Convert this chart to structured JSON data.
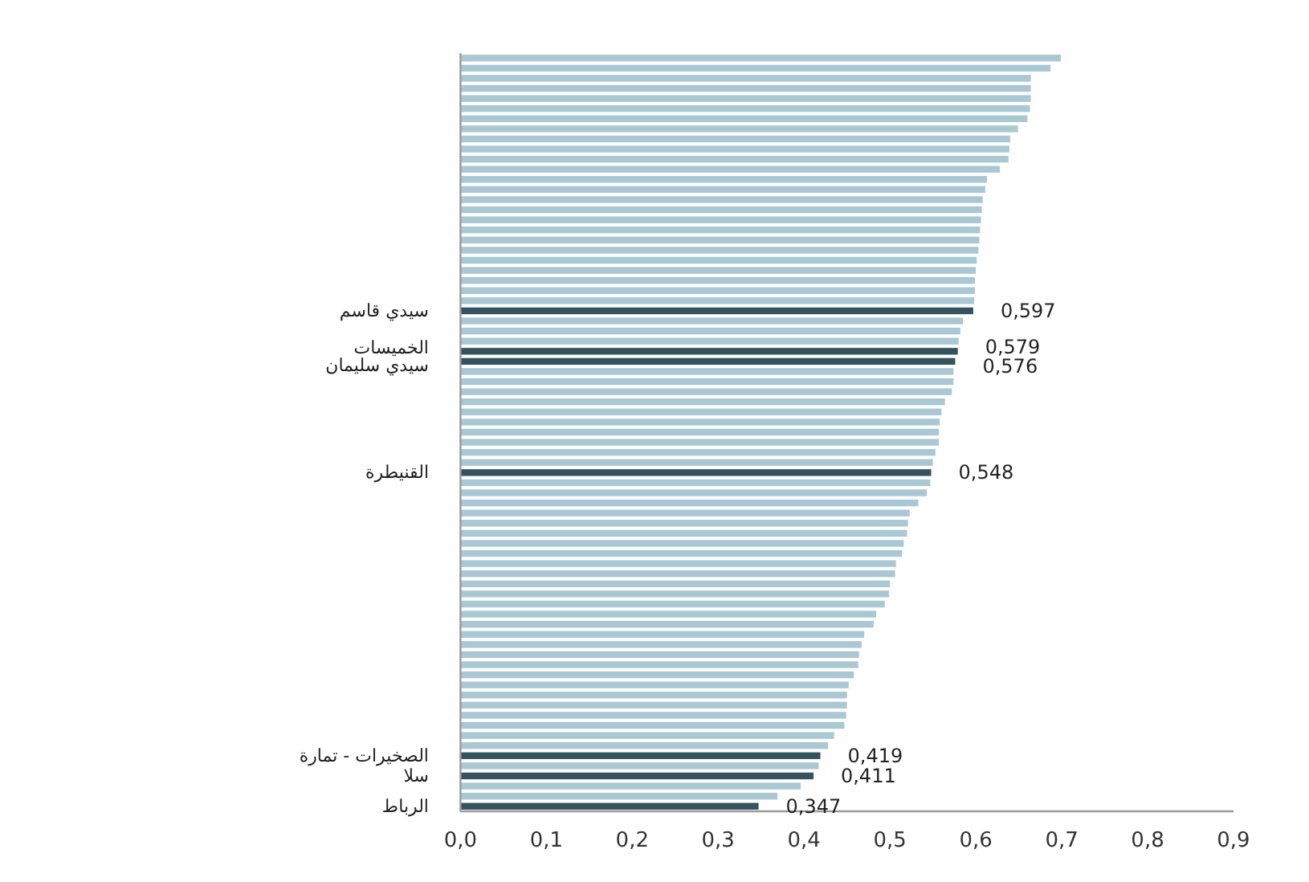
{
  "chart_data": {
    "type": "bar",
    "orientation": "horizontal",
    "categories": [
      null,
      null,
      null,
      null,
      null,
      null,
      null,
      null,
      null,
      null,
      null,
      null,
      null,
      null,
      null,
      null,
      null,
      null,
      null,
      null,
      null,
      null,
      null,
      null,
      null,
      "سيدي قاسم",
      null,
      null,
      null,
      "الخميسات",
      "سيدي سليمان",
      null,
      null,
      null,
      null,
      null,
      null,
      null,
      null,
      null,
      null,
      "القنيطرة",
      null,
      null,
      null,
      null,
      null,
      null,
      null,
      null,
      null,
      null,
      null,
      null,
      null,
      null,
      null,
      null,
      null,
      null,
      null,
      null,
      null,
      null,
      null,
      null,
      null,
      null,
      null,
      "الصخيرات - تمارة",
      null,
      "سلا",
      null,
      null,
      "الرباط"
    ],
    "values": [
      0.699,
      0.687,
      0.664,
      0.664,
      0.664,
      0.663,
      0.66,
      0.649,
      0.64,
      0.639,
      0.638,
      0.628,
      0.613,
      0.611,
      0.608,
      0.607,
      0.606,
      0.605,
      0.604,
      0.603,
      0.601,
      0.6,
      0.599,
      0.599,
      0.598,
      0.597,
      0.585,
      0.582,
      0.58,
      0.579,
      0.576,
      0.574,
      0.574,
      0.572,
      0.564,
      0.56,
      0.558,
      0.557,
      0.557,
      0.553,
      0.55,
      0.548,
      0.547,
      0.543,
      0.533,
      0.523,
      0.521,
      0.52,
      0.516,
      0.514,
      0.507,
      0.506,
      0.5,
      0.499,
      0.494,
      0.484,
      0.481,
      0.47,
      0.467,
      0.464,
      0.463,
      0.458,
      0.452,
      0.45,
      0.45,
      0.449,
      0.447,
      0.435,
      0.428,
      0.419,
      0.417,
      0.411,
      0.396,
      0.369,
      0.347
    ],
    "colors": [
      "#a9c8d4",
      "#a9c8d4",
      "#a9c8d4",
      "#a9c8d4",
      "#a9c8d4",
      "#a9c8d4",
      "#a9c8d4",
      "#a9c8d4",
      "#a9c8d4",
      "#a9c8d4",
      "#a9c8d4",
      "#a9c8d4",
      "#a9c8d4",
      "#a9c8d4",
      "#a9c8d4",
      "#a9c8d4",
      "#a9c8d4",
      "#a9c8d4",
      "#a9c8d4",
      "#a9c8d4",
      "#a9c8d4",
      "#a9c8d4",
      "#a9c8d4",
      "#a9c8d4",
      "#a9c8d4",
      "#34535e",
      "#a9c8d4",
      "#a9c8d4",
      "#a9c8d4",
      "#34535e",
      "#34535e",
      "#a9c8d4",
      "#a9c8d4",
      "#a9c8d4",
      "#a9c8d4",
      "#a9c8d4",
      "#a9c8d4",
      "#a9c8d4",
      "#a9c8d4",
      "#a9c8d4",
      "#a9c8d4",
      "#34535e",
      "#a9c8d4",
      "#a9c8d4",
      "#a9c8d4",
      "#a9c8d4",
      "#a9c8d4",
      "#a9c8d4",
      "#a9c8d4",
      "#a9c8d4",
      "#a9c8d4",
      "#a9c8d4",
      "#a9c8d4",
      "#a9c8d4",
      "#a9c8d4",
      "#a9c8d4",
      "#a9c8d4",
      "#a9c8d4",
      "#a9c8d4",
      "#a9c8d4",
      "#a9c8d4",
      "#a9c8d4",
      "#a9c8d4",
      "#a9c8d4",
      "#a9c8d4",
      "#a9c8d4",
      "#a9c8d4",
      "#a9c8d4",
      "#a9c8d4",
      "#34535e",
      "#a9c8d4",
      "#34535e",
      "#a9c8d4",
      "#a9c8d4",
      "#34535e"
    ],
    "value_labels": [
      null,
      null,
      null,
      null,
      null,
      null,
      null,
      null,
      null,
      null,
      null,
      null,
      null,
      null,
      null,
      null,
      null,
      null,
      null,
      null,
      null,
      null,
      null,
      null,
      null,
      "0,597",
      null,
      null,
      null,
      "0,579",
      "0,576",
      null,
      null,
      null,
      null,
      null,
      null,
      null,
      null,
      null,
      null,
      "0,548",
      null,
      null,
      null,
      null,
      null,
      null,
      null,
      null,
      null,
      null,
      null,
      null,
      null,
      null,
      null,
      null,
      null,
      null,
      null,
      null,
      null,
      null,
      null,
      null,
      null,
      null,
      null,
      "0,419",
      null,
      "0,411",
      null,
      null,
      "0,347"
    ],
    "xlim": [
      0,
      0.9
    ],
    "xticks": [
      {
        "value": 0,
        "label": "0,0"
      },
      {
        "value": 0.1,
        "label": "0,1"
      },
      {
        "value": 0.2,
        "label": "0,2"
      },
      {
        "value": 0.3,
        "label": "0,3"
      },
      {
        "value": 0.4,
        "label": "0,4"
      },
      {
        "value": 0.5,
        "label": "0,5"
      },
      {
        "value": 0.6,
        "label": "0,6"
      },
      {
        "value": 0.7,
        "label": "0,7"
      },
      {
        "value": 0.8,
        "label": "0,8"
      },
      {
        "value": 0.9,
        "label": "0,9"
      }
    ]
  }
}
